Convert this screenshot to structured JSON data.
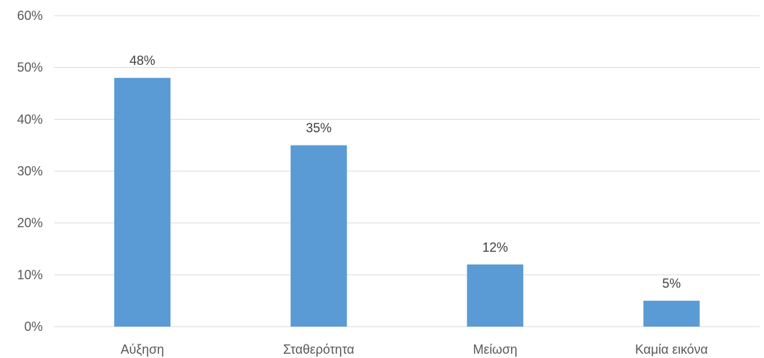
{
  "chart_data": {
    "type": "bar",
    "categories": [
      "Αύξηση",
      "Σταθερότητα",
      "Μείωση",
      "Καμία εικόνα"
    ],
    "values": [
      48,
      35,
      12,
      5
    ],
    "value_labels": [
      "48%",
      "35%",
      "12%",
      "5%"
    ],
    "y_ticks": [
      "0%",
      "10%",
      "20%",
      "30%",
      "40%",
      "50%",
      "60%"
    ],
    "ylim": [
      0,
      60
    ],
    "grid": true,
    "legend": "none",
    "bar_color": "#5b9bd5"
  }
}
